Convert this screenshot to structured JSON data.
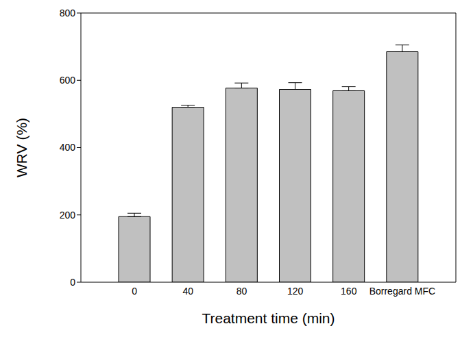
{
  "chart_data": {
    "type": "bar",
    "x_label": "Treatment time (min)",
    "y_label": "WRV (%)",
    "categories": [
      "0",
      "40",
      "80",
      "120",
      "160",
      "Borregard MFC"
    ],
    "values": [
      195,
      520,
      577,
      573,
      569,
      685
    ],
    "errors": [
      10,
      6,
      15,
      20,
      12,
      20
    ],
    "color": "#c0c0c0",
    "ylim": [
      0,
      800
    ],
    "yticks": [
      0,
      200,
      400,
      600,
      800
    ],
    "grid": false
  }
}
